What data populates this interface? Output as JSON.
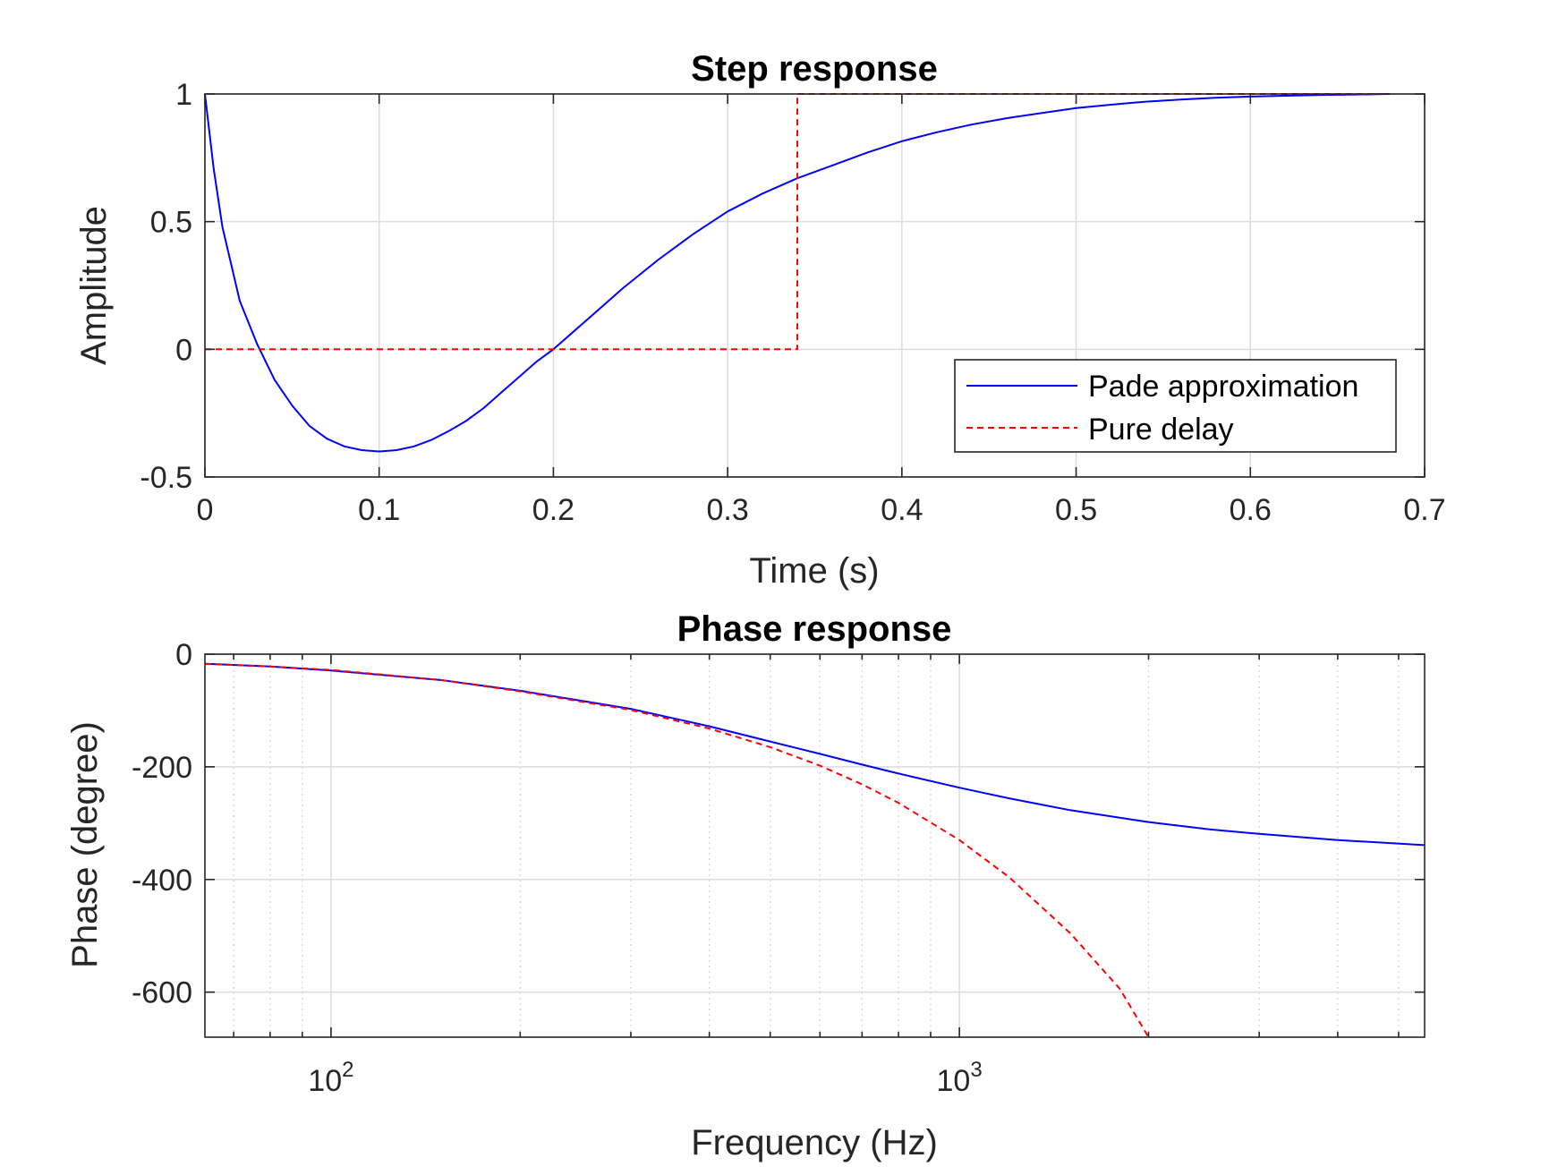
{
  "chart_data": [
    {
      "type": "line",
      "title": "Step response",
      "xlabel": "Time (s)",
      "ylabel": "Amplitude",
      "xlim": [
        0,
        0.7
      ],
      "ylim": [
        -0.5,
        1
      ],
      "xticks": [
        "0",
        "0.1",
        "0.2",
        "0.3",
        "0.4",
        "0.5",
        "0.6",
        "0.7"
      ],
      "yticks": [
        "-0.5",
        "0",
        "0.5",
        "1"
      ],
      "grid": true,
      "legend_position": "bottom-right",
      "series": [
        {
          "name": "Pade approximation",
          "color": "#0000ff",
          "style": "solid",
          "x": [
            0,
            0.005,
            0.01,
            0.02,
            0.03,
            0.04,
            0.05,
            0.06,
            0.07,
            0.08,
            0.09,
            0.1,
            0.11,
            0.12,
            0.13,
            0.14,
            0.15,
            0.16,
            0.17,
            0.18,
            0.19,
            0.2,
            0.22,
            0.24,
            0.26,
            0.28,
            0.3,
            0.32,
            0.34,
            0.36,
            0.38,
            0.4,
            0.42,
            0.44,
            0.46,
            0.48,
            0.5,
            0.52,
            0.54,
            0.56,
            0.58,
            0.6,
            0.62,
            0.64,
            0.66,
            0.68
          ],
          "y": [
            1,
            0.71,
            0.48,
            0.19,
            0.02,
            -0.12,
            -0.22,
            -0.3,
            -0.35,
            -0.38,
            -0.395,
            -0.4,
            -0.395,
            -0.38,
            -0.355,
            -0.32,
            -0.28,
            -0.23,
            -0.17,
            -0.11,
            -0.05,
            0.0,
            0.12,
            0.24,
            0.35,
            0.45,
            0.54,
            0.61,
            0.67,
            0.72,
            0.77,
            0.815,
            0.85,
            0.88,
            0.905,
            0.925,
            0.945,
            0.958,
            0.97,
            0.978,
            0.985,
            0.99,
            0.993,
            0.996,
            0.998,
            1.0
          ]
        },
        {
          "name": "Pure delay",
          "color": "#ff0000",
          "style": "dashed",
          "x": [
            0,
            0.34,
            0.34,
            0.68
          ],
          "y": [
            0,
            0,
            1,
            1
          ]
        }
      ]
    },
    {
      "type": "line",
      "title": "Phase response",
      "xlabel": "Frequency (Hz)",
      "ylabel": "Phase (degree)",
      "xscale": "log",
      "xlim": [
        63,
        5500
      ],
      "ylim": [
        -680,
        0
      ],
      "xticks": [
        {
          "value": 100,
          "base": "10",
          "exp": "2"
        },
        {
          "value": 1000,
          "base": "10",
          "exp": "3"
        }
      ],
      "yticks": [
        "0",
        "-200",
        "-400",
        "-600"
      ],
      "grid": true,
      "series": [
        {
          "color": "#0000ff",
          "style": "solid",
          "x": [
            63,
            80,
            100,
            150,
            200,
            300,
            400,
            500,
            600,
            700,
            800,
            1000,
            1200,
            1500,
            2000,
            2500,
            3000,
            4000,
            5500
          ],
          "y": [
            -17,
            -22,
            -29,
            -46,
            -65,
            -97,
            -128,
            -155,
            -177,
            -196,
            -212,
            -237,
            -256,
            -277,
            -298,
            -311,
            -319,
            -330,
            -339
          ]
        },
        {
          "color": "#ff0000",
          "style": "dashed",
          "x": [
            63,
            80,
            100,
            150,
            200,
            300,
            400,
            500,
            600,
            700,
            800,
            1000,
            1200,
            1500,
            1800,
            2000
          ],
          "y": [
            -17,
            -22,
            -28,
            -46,
            -66,
            -99,
            -132,
            -165,
            -198,
            -231,
            -264,
            -330,
            -396,
            -495,
            -594,
            -680
          ]
        }
      ]
    }
  ]
}
